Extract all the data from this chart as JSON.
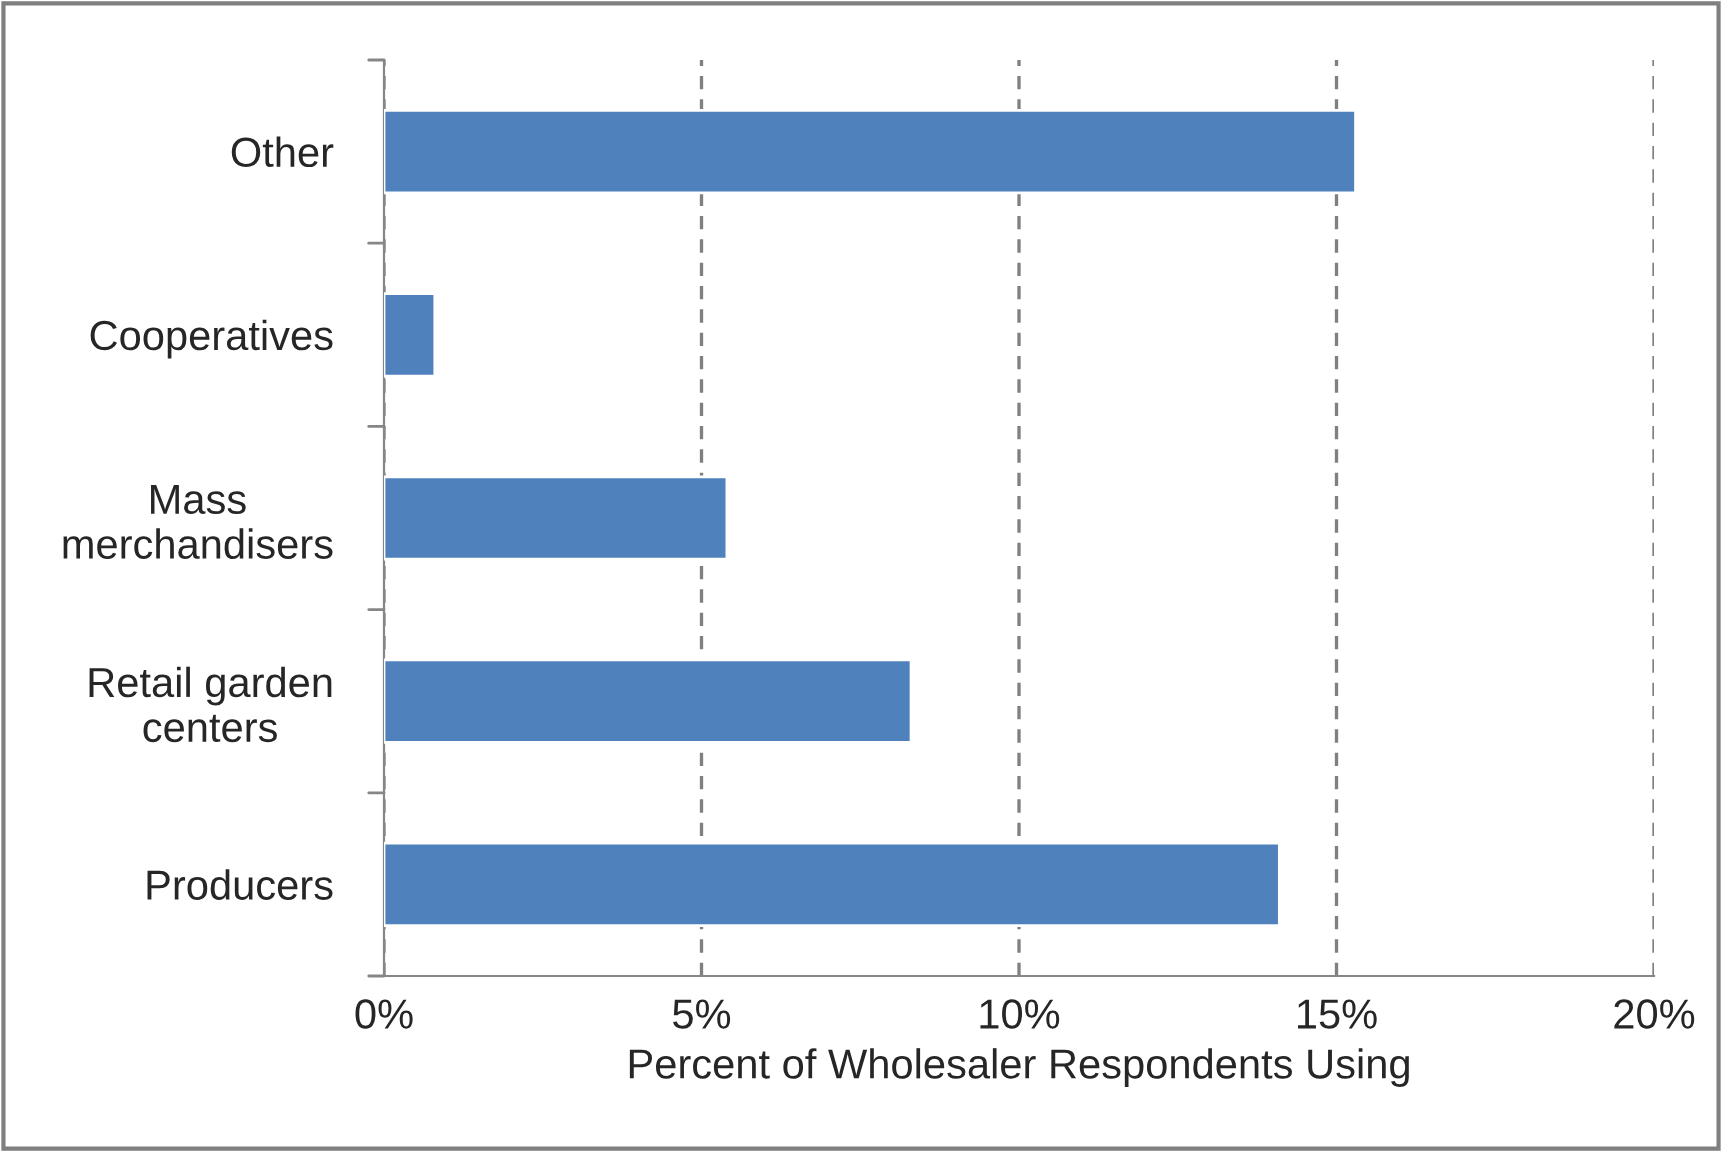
{
  "chart_data": {
    "type": "bar",
    "orientation": "horizontal",
    "xlabel": "Percent of Wholesaler Respondents Using",
    "categories": [
      "Other",
      "Cooperatives",
      "Mass\nmerchandisers",
      "Retail garden\ncenters",
      "Producers"
    ],
    "values": [
      15.3,
      0.8,
      5.4,
      8.3,
      14.1
    ],
    "color": "#4f81bd",
    "xlim": [
      0,
      20
    ],
    "xticks": [
      {
        "value": 0,
        "label": "0%"
      },
      {
        "value": 5,
        "label": "5%"
      },
      {
        "value": 10,
        "label": "10%"
      },
      {
        "value": 15,
        "label": "15%"
      },
      {
        "value": 20,
        "label": "20%"
      }
    ],
    "grid": "x",
    "line_style": "dashed",
    "legend": false
  }
}
